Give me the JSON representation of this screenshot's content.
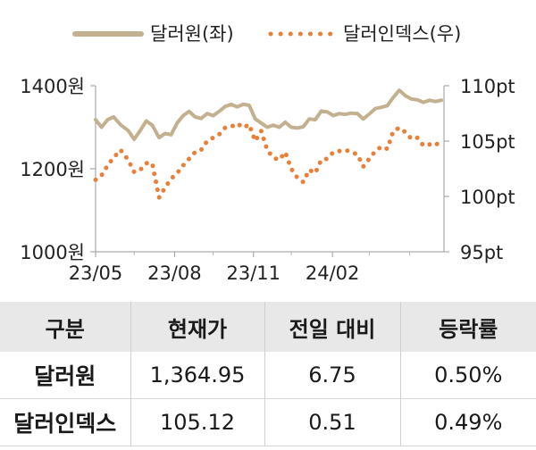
{
  "chart_data": {
    "type": "line",
    "series": [
      {
        "name": "달러원(좌)",
        "axis": "left",
        "color": "#c2b08f",
        "style": "solid",
        "points": [
          [
            "2023-05-01",
            1318
          ],
          [
            "2023-05-08",
            1300
          ],
          [
            "2023-05-15",
            1318
          ],
          [
            "2023-05-22",
            1325
          ],
          [
            "2023-05-30",
            1306
          ],
          [
            "2023-06-08",
            1292
          ],
          [
            "2023-06-15",
            1271
          ],
          [
            "2023-06-22",
            1292
          ],
          [
            "2023-06-29",
            1315
          ],
          [
            "2023-07-06",
            1305
          ],
          [
            "2023-07-14",
            1275
          ],
          [
            "2023-07-21",
            1285
          ],
          [
            "2023-07-28",
            1282
          ],
          [
            "2023-08-04",
            1310
          ],
          [
            "2023-08-11",
            1328
          ],
          [
            "2023-08-18",
            1338
          ],
          [
            "2023-08-25",
            1325
          ],
          [
            "2023-09-01",
            1321
          ],
          [
            "2023-09-08",
            1333
          ],
          [
            "2023-09-15",
            1328
          ],
          [
            "2023-09-22",
            1338
          ],
          [
            "2023-09-29",
            1350
          ],
          [
            "2023-10-06",
            1355
          ],
          [
            "2023-10-13",
            1349
          ],
          [
            "2023-10-20",
            1355
          ],
          [
            "2023-10-27",
            1353
          ],
          [
            "2023-11-03",
            1320
          ],
          [
            "2023-11-10",
            1310
          ],
          [
            "2023-11-17",
            1300
          ],
          [
            "2023-11-24",
            1305
          ],
          [
            "2023-12-01",
            1300
          ],
          [
            "2023-12-08",
            1312
          ],
          [
            "2023-12-15",
            1300
          ],
          [
            "2023-12-22",
            1298
          ],
          [
            "2023-12-29",
            1301
          ],
          [
            "2024-01-05",
            1320
          ],
          [
            "2024-01-12",
            1318
          ],
          [
            "2024-01-19",
            1339
          ],
          [
            "2024-01-26",
            1337
          ],
          [
            "2024-02-02",
            1328
          ],
          [
            "2024-02-09",
            1333
          ],
          [
            "2024-02-16",
            1331
          ],
          [
            "2024-02-23",
            1334
          ],
          [
            "2024-03-01",
            1333
          ],
          [
            "2024-03-08",
            1320
          ],
          [
            "2024-03-15",
            1332
          ],
          [
            "2024-03-22",
            1345
          ],
          [
            "2024-03-29",
            1348
          ],
          [
            "2024-04-05",
            1352
          ],
          [
            "2024-04-12",
            1372
          ],
          [
            "2024-04-19",
            1389
          ],
          [
            "2024-04-26",
            1376
          ],
          [
            "2024-05-03",
            1368
          ],
          [
            "2024-05-10",
            1366
          ],
          [
            "2024-05-17",
            1360
          ],
          [
            "2024-05-24",
            1365
          ],
          [
            "2024-05-31",
            1362
          ],
          [
            "2024-06-07",
            1364.95
          ]
        ]
      },
      {
        "name": "달러인덱스(우)",
        "axis": "right",
        "color": "#e8803a",
        "style": "dotted",
        "points": [
          [
            "2023-05-01",
            101.5
          ],
          [
            "2023-05-08",
            101.9
          ],
          [
            "2023-05-15",
            102.8
          ],
          [
            "2023-05-22",
            103.5
          ],
          [
            "2023-05-30",
            104.2
          ],
          [
            "2023-06-08",
            103.3
          ],
          [
            "2023-06-15",
            102.2
          ],
          [
            "2023-06-22",
            102.4
          ],
          [
            "2023-06-29",
            103.0
          ],
          [
            "2023-07-06",
            103.0
          ],
          [
            "2023-07-14",
            99.9
          ],
          [
            "2023-07-21",
            100.8
          ],
          [
            "2023-07-28",
            101.6
          ],
          [
            "2023-08-04",
            102.1
          ],
          [
            "2023-08-11",
            102.8
          ],
          [
            "2023-08-18",
            103.4
          ],
          [
            "2023-08-25",
            104.0
          ],
          [
            "2023-09-01",
            104.2
          ],
          [
            "2023-09-08",
            105.0
          ],
          [
            "2023-09-15",
            105.3
          ],
          [
            "2023-09-22",
            105.6
          ],
          [
            "2023-09-29",
            106.2
          ],
          [
            "2023-10-06",
            106.3
          ],
          [
            "2023-10-13",
            106.6
          ],
          [
            "2023-10-20",
            106.2
          ],
          [
            "2023-10-27",
            106.5
          ],
          [
            "2023-11-03",
            105.0
          ],
          [
            "2023-11-10",
            105.9
          ],
          [
            "2023-11-17",
            104.2
          ],
          [
            "2023-11-24",
            103.5
          ],
          [
            "2023-12-01",
            103.3
          ],
          [
            "2023-12-08",
            104.0
          ],
          [
            "2023-12-15",
            102.5
          ],
          [
            "2023-12-22",
            101.7
          ],
          [
            "2023-12-29",
            101.3
          ],
          [
            "2024-01-05",
            102.4
          ],
          [
            "2024-01-12",
            102.1
          ],
          [
            "2024-01-19",
            103.3
          ],
          [
            "2024-01-26",
            103.4
          ],
          [
            "2024-02-02",
            104.0
          ],
          [
            "2024-02-09",
            104.1
          ],
          [
            "2024-02-16",
            104.2
          ],
          [
            "2024-02-23",
            104.0
          ],
          [
            "2024-03-01",
            103.8
          ],
          [
            "2024-03-08",
            102.7
          ],
          [
            "2024-03-15",
            103.4
          ],
          [
            "2024-03-22",
            104.1
          ],
          [
            "2024-03-29",
            104.5
          ],
          [
            "2024-04-05",
            104.3
          ],
          [
            "2024-04-12",
            105.9
          ],
          [
            "2024-04-19",
            106.2
          ],
          [
            "2024-04-26",
            105.8
          ],
          [
            "2024-05-03",
            105.2
          ],
          [
            "2024-05-10",
            105.3
          ],
          [
            "2024-05-17",
            104.6
          ],
          [
            "2024-05-24",
            104.7
          ],
          [
            "2024-05-31",
            104.6
          ],
          [
            "2024-06-07",
            105.12
          ]
        ]
      }
    ],
    "x_ticks": [
      {
        "date": "2023-05-01",
        "label": "23/05"
      },
      {
        "date": "2023-08-01",
        "label": "23/08"
      },
      {
        "date": "2023-11-01",
        "label": "23/11"
      },
      {
        "date": "2024-02-01",
        "label": "24/02"
      }
    ],
    "x_range": [
      "2023-05-01",
      "2024-06-10"
    ],
    "y_left": {
      "ylim": [
        1000,
        1400
      ],
      "ticks": [
        {
          "value": 1400,
          "label": "1400원"
        },
        {
          "value": 1200,
          "label": "1200원"
        },
        {
          "value": 1000,
          "label": "1000원"
        }
      ]
    },
    "y_right": {
      "ylim": [
        95,
        110
      ],
      "ticks": [
        {
          "value": 110,
          "label": "110pt"
        },
        {
          "value": 105,
          "label": "105pt"
        },
        {
          "value": 100,
          "label": "100pt"
        },
        {
          "value": 95,
          "label": "95pt"
        }
      ]
    },
    "legend": {
      "position": "top",
      "entries": [
        "달러원(좌)",
        "달러인덱스(우)"
      ]
    },
    "grid": false
  },
  "table": {
    "headers": [
      "구분",
      "현재가",
      "전일 대비",
      "등락률"
    ],
    "rows": [
      {
        "name": "달러원",
        "price": "1,364.95",
        "change": "6.75",
        "rate": "0.50%"
      },
      {
        "name": "달러인덱스",
        "price": "105.12",
        "change": "0.51",
        "rate": "0.49%"
      }
    ]
  }
}
